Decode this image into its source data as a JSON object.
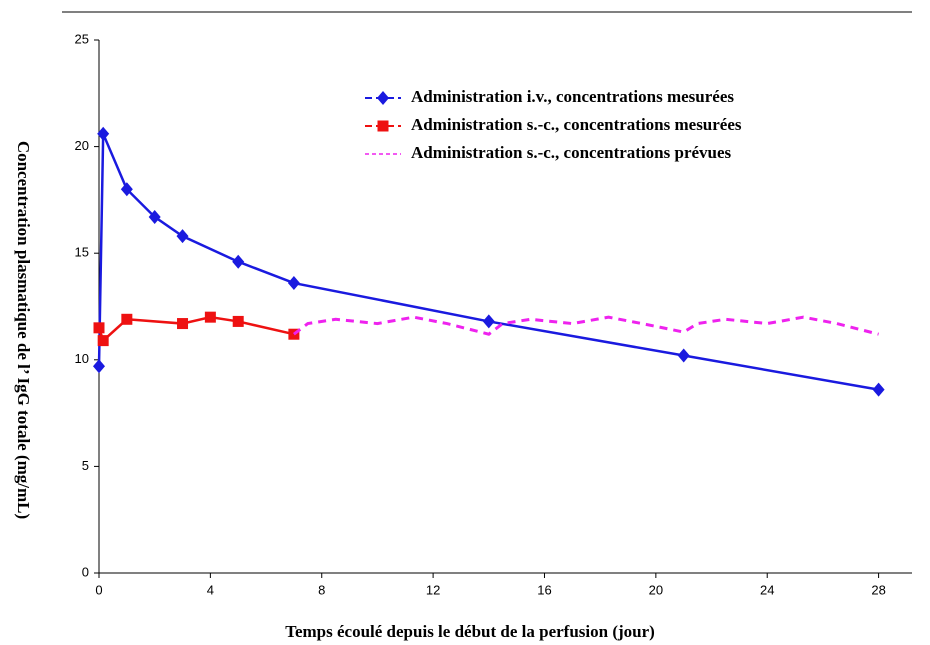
{
  "chart_data": {
    "type": "line",
    "xlabel": "Temps écoulé depuis le début de la perfusion (jour)",
    "ylabel": "Concentration plasmatique de l’  IgG totale (mg/mL)",
    "xlim": [
      0,
      29.2
    ],
    "xticks": [
      0,
      4,
      8,
      12,
      16,
      20,
      24,
      28
    ],
    "ylim": [
      0,
      25
    ],
    "yticks": [
      0,
      5,
      10,
      15,
      20,
      25
    ],
    "legend_loc": "upper right",
    "series": [
      {
        "name": "Administration i.v., concentrations mesurées",
        "color": "#1a1adf",
        "marker": "diamond",
        "dashed": false,
        "x": [
          0,
          0.15,
          1,
          2,
          3,
          5,
          7,
          14,
          21,
          28
        ],
        "values": [
          9.7,
          20.6,
          18,
          16.7,
          15.8,
          14.6,
          13.6,
          11.8,
          10.2,
          8.6
        ]
      },
      {
        "name": "Administration s.-c., concentrations mesurées",
        "color": "#ee1111",
        "marker": "square",
        "dashed": false,
        "x": [
          0,
          0.15,
          1,
          3,
          4,
          5,
          7
        ],
        "values": [
          11.5,
          10.9,
          11.9,
          11.7,
          12,
          11.8,
          11.2
        ]
      },
      {
        "name": "Administration s.-c., concentrations prévues",
        "color": "#ee22ee",
        "marker": "none",
        "dashed": true,
        "x": [
          7,
          7.5,
          8.5,
          10,
          11.3,
          12.5,
          14,
          14.5,
          15.5,
          17,
          18.3,
          19.5,
          21,
          21.5,
          22.5,
          24,
          25.3,
          26.5,
          28
        ],
        "values": [
          11.2,
          11.7,
          11.9,
          11.7,
          12,
          11.7,
          11.2,
          11.7,
          11.9,
          11.7,
          12,
          11.7,
          11.3,
          11.7,
          11.9,
          11.7,
          12,
          11.7,
          11.2
        ]
      }
    ]
  }
}
